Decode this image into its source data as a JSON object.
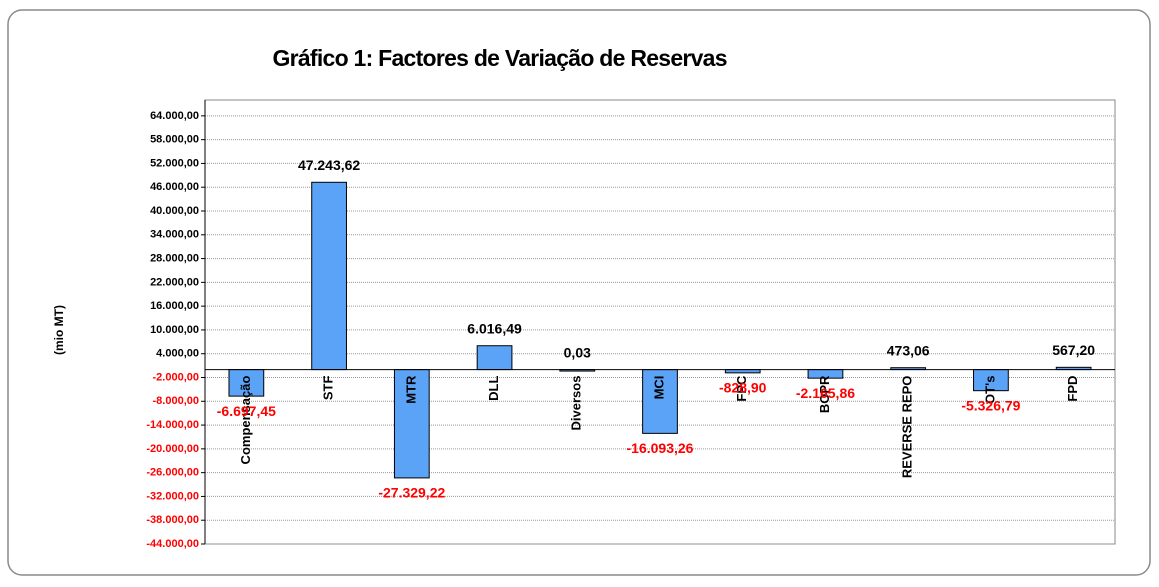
{
  "chart_data": {
    "type": "bar",
    "title": "Gráfico 1: Factores de Variação de Reservas",
    "y_label": "(mio MT)",
    "categories": [
      "Compensação",
      "STF",
      "MTR",
      "DLL",
      "Diversos",
      "MCI",
      "FPC",
      "BOPR",
      "REVERSE REPO",
      "OT's",
      "FPD"
    ],
    "values": [
      -6697.45,
      47243.62,
      -27329.22,
      6016.49,
      0.03,
      -16093.26,
      -828.9,
      -2165.86,
      473.06,
      -5326.79,
      567.2
    ],
    "value_labels": [
      "-6.697,45",
      "47.243,62",
      "-27.329,22",
      "6.016,49",
      "0,03",
      "-16.093,26",
      "-828,90",
      "-2.165,86",
      "473,06",
      "-5.326,79",
      "567,20"
    ],
    "color": "#5ba3f7",
    "ylim": [
      -44000,
      68000
    ],
    "yticks": [
      {
        "value": 64000,
        "label": "64.000,00"
      },
      {
        "value": 58000,
        "label": "58.000,00"
      },
      {
        "value": 52000,
        "label": "52.000,00"
      },
      {
        "value": 46000,
        "label": "46.000,00"
      },
      {
        "value": 40000,
        "label": "40.000,00"
      },
      {
        "value": 34000,
        "label": "34.000,00"
      },
      {
        "value": 28000,
        "label": "28.000,00"
      },
      {
        "value": 22000,
        "label": "22.000,00"
      },
      {
        "value": 16000,
        "label": "16.000,00"
      },
      {
        "value": 10000,
        "label": "10.000,00"
      },
      {
        "value": 4000,
        "label": "4.000,00"
      },
      {
        "value": -2000,
        "label": "-2.000,00"
      },
      {
        "value": -8000,
        "label": "-8.000,00"
      },
      {
        "value": -14000,
        "label": "-14.000,00"
      },
      {
        "value": -20000,
        "label": "-20.000,00"
      },
      {
        "value": -26000,
        "label": "-26.000,00"
      },
      {
        "value": -32000,
        "label": "-32.000,00"
      },
      {
        "value": -38000,
        "label": "-38.000,00"
      },
      {
        "value": -44000,
        "label": "-44.000,00"
      }
    ],
    "grid": true
  }
}
